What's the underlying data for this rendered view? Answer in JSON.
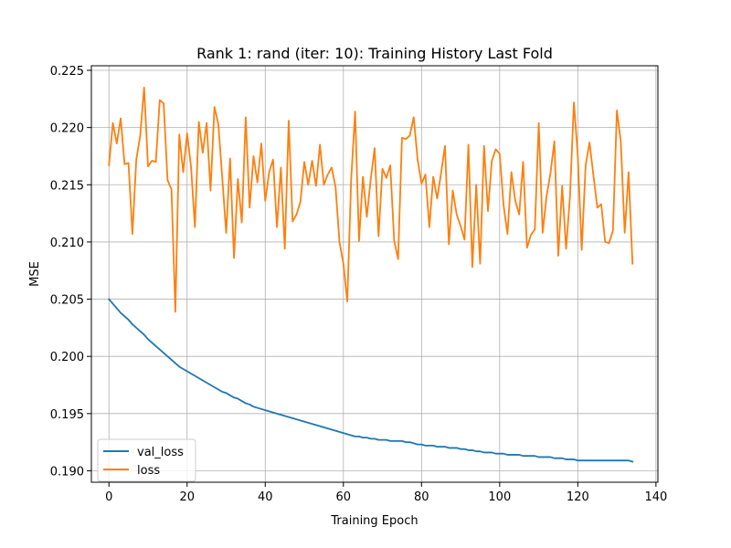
{
  "chart_data": {
    "type": "line",
    "title": "Rank 1: rand (iter: 10): Training History Last Fold",
    "xlabel": "Training Epoch",
    "ylabel": "MSE",
    "xlim": [
      -4.5,
      140.5
    ],
    "ylim": [
      0.189,
      0.2254
    ],
    "xticks": [
      0,
      20,
      40,
      60,
      80,
      100,
      120,
      140
    ],
    "xtick_labels": [
      "0",
      "20",
      "40",
      "60",
      "80",
      "100",
      "120",
      "140"
    ],
    "yticks": [
      0.19,
      0.195,
      0.2,
      0.205,
      0.21,
      0.215,
      0.22,
      0.225
    ],
    "ytick_labels": [
      "0.190",
      "0.195",
      "0.200",
      "0.205",
      "0.210",
      "0.215",
      "0.220",
      "0.225"
    ],
    "grid": true,
    "legend_position": "bottom-left",
    "series": [
      {
        "name": "val_loss",
        "color": "#1f77b4",
        "x_start": 0,
        "values": [
          0.205,
          0.2046,
          0.2042,
          0.2038,
          0.2035,
          0.2032,
          0.2028,
          0.2025,
          0.2022,
          0.2019,
          0.2015,
          0.2012,
          0.2009,
          0.2006,
          0.2003,
          0.2,
          0.1997,
          0.1994,
          0.1991,
          0.1989,
          0.1987,
          0.1985,
          0.1983,
          0.1981,
          0.1979,
          0.1977,
          0.1975,
          0.1973,
          0.1971,
          0.1969,
          0.1968,
          0.1966,
          0.1964,
          0.1963,
          0.1961,
          0.1959,
          0.1958,
          0.1956,
          0.1955,
          0.1954,
          0.1953,
          0.1952,
          0.1951,
          0.195,
          0.1949,
          0.1948,
          0.1947,
          0.1946,
          0.1945,
          0.1944,
          0.1943,
          0.1942,
          0.1941,
          0.194,
          0.1939,
          0.1938,
          0.1937,
          0.1936,
          0.1935,
          0.1934,
          0.1933,
          0.1932,
          0.1931,
          0.193,
          0.193,
          0.1929,
          0.1929,
          0.1928,
          0.1928,
          0.1927,
          0.1927,
          0.1927,
          0.1926,
          0.1926,
          0.1926,
          0.1926,
          0.1925,
          0.1925,
          0.1924,
          0.1923,
          0.1923,
          0.1922,
          0.1922,
          0.1922,
          0.1921,
          0.1921,
          0.1921,
          0.192,
          0.192,
          0.192,
          0.1919,
          0.1919,
          0.1918,
          0.1918,
          0.1917,
          0.1917,
          0.1916,
          0.1916,
          0.1916,
          0.1915,
          0.1915,
          0.1915,
          0.1914,
          0.1914,
          0.1914,
          0.1914,
          0.1913,
          0.1913,
          0.1913,
          0.1913,
          0.1912,
          0.1912,
          0.1912,
          0.1912,
          0.1911,
          0.1911,
          0.1911,
          0.191,
          0.191,
          0.191,
          0.1909,
          0.1909,
          0.1909,
          0.1909,
          0.1909,
          0.1909,
          0.1909,
          0.1909,
          0.1909,
          0.1909,
          0.1909,
          0.1909,
          0.1909,
          0.1909,
          0.1908
        ]
      },
      {
        "name": "loss",
        "color": "#ff7f0e",
        "x_start": 0,
        "values": [
          0.2167,
          0.2204,
          0.2186,
          0.2208,
          0.2168,
          0.2169,
          0.2107,
          0.2172,
          0.2193,
          0.2235,
          0.2166,
          0.2171,
          0.217,
          0.2224,
          0.2221,
          0.2154,
          0.2146,
          0.2039,
          0.2194,
          0.2161,
          0.2195,
          0.2166,
          0.2113,
          0.2205,
          0.2178,
          0.2204,
          0.2145,
          0.2218,
          0.2203,
          0.2156,
          0.2108,
          0.2173,
          0.2086,
          0.2155,
          0.2117,
          0.2209,
          0.213,
          0.2175,
          0.2152,
          0.2186,
          0.2136,
          0.2161,
          0.2172,
          0.2113,
          0.2165,
          0.2094,
          0.2206,
          0.2118,
          0.2124,
          0.2135,
          0.217,
          0.215,
          0.2171,
          0.2149,
          0.2185,
          0.215,
          0.2159,
          0.2165,
          0.2148,
          0.21,
          0.2081,
          0.2048,
          0.2155,
          0.2214,
          0.2101,
          0.2157,
          0.2122,
          0.2155,
          0.2182,
          0.2105,
          0.2164,
          0.2156,
          0.2167,
          0.2101,
          0.2085,
          0.2191,
          0.219,
          0.2193,
          0.2209,
          0.2172,
          0.2151,
          0.2159,
          0.2113,
          0.2157,
          0.2138,
          0.216,
          0.2184,
          0.2098,
          0.2145,
          0.2124,
          0.2114,
          0.2102,
          0.2185,
          0.2078,
          0.215,
          0.2081,
          0.2184,
          0.2127,
          0.2171,
          0.2181,
          0.2177,
          0.2132,
          0.2107,
          0.2161,
          0.2136,
          0.2124,
          0.217,
          0.2095,
          0.2106,
          0.2111,
          0.2204,
          0.2108,
          0.214,
          0.216,
          0.2188,
          0.2088,
          0.2149,
          0.2094,
          0.214,
          0.2222,
          0.2175,
          0.2093,
          0.2167,
          0.2187,
          0.2158,
          0.213,
          0.2133,
          0.21,
          0.2099,
          0.211,
          0.2215,
          0.2188,
          0.2108,
          0.2161,
          0.2081
        ]
      }
    ]
  }
}
